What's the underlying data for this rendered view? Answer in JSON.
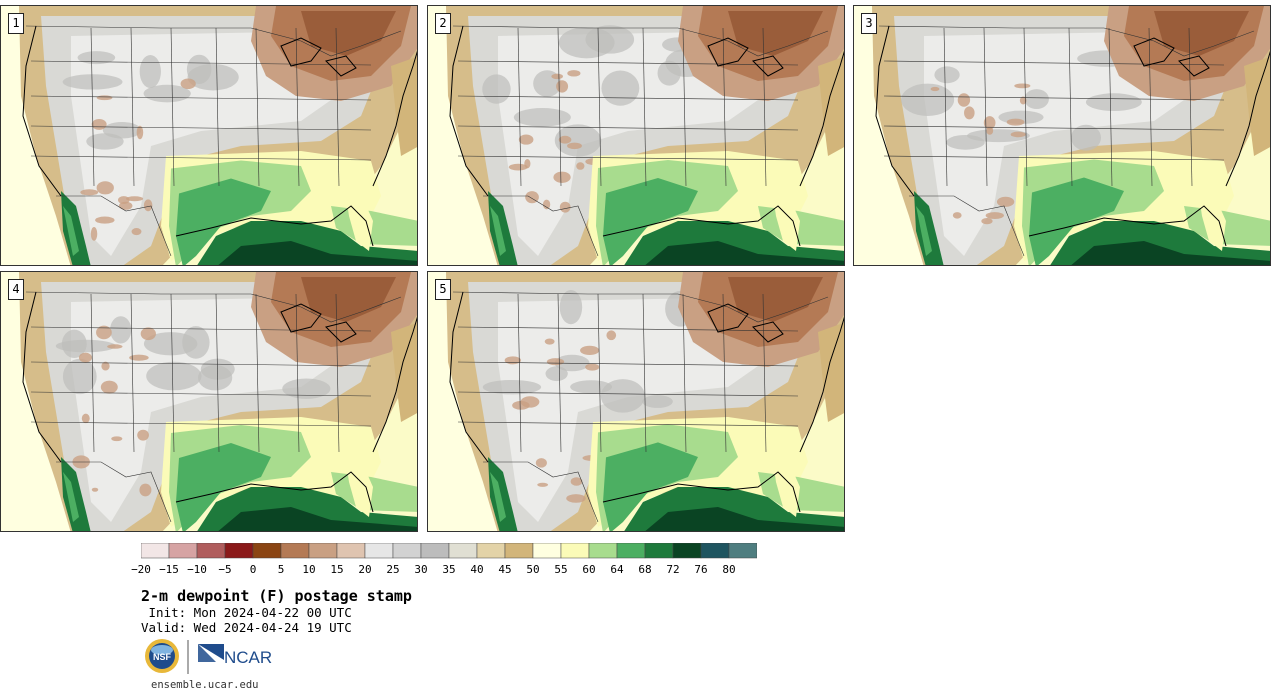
{
  "panels": [
    {
      "label": "1"
    },
    {
      "label": "2"
    },
    {
      "label": "3"
    },
    {
      "label": "4"
    },
    {
      "label": "5"
    }
  ],
  "colorbar": {
    "colors": [
      "#f2e6e6",
      "#d6a3a3",
      "#b05d5d",
      "#8b1a1a",
      "#8b4513",
      "#b47a55",
      "#c9a083",
      "#dfc4b0",
      "#e6e6e6",
      "#d2d2d2",
      "#bcbcbc",
      "#e0dfd3",
      "#e3d3a8",
      "#d2b57a",
      "#ffffe0",
      "#fbfbb8",
      "#a8dc8e",
      "#4caf62",
      "#1e7a3c",
      "#0a4423",
      "#1f5560",
      "#4f7e80"
    ],
    "tick_labels": [
      "−20",
      "−15",
      "−10",
      "−5",
      "0",
      "5",
      "10",
      "15",
      "20",
      "25",
      "30",
      "35",
      "40",
      "45",
      "50",
      "55",
      "60",
      "64",
      "68",
      "72",
      "76",
      "80"
    ]
  },
  "title": "2-m dewpoint (F) postage stamp",
  "init": " Init: Mon 2024-04-22 00 UTC",
  "valid": "Valid: Wed 2024-04-24 19 UTC",
  "logos": {
    "nsf": "NSF",
    "ncar": "NCAR"
  },
  "website": "ensemble.ucar.edu"
}
